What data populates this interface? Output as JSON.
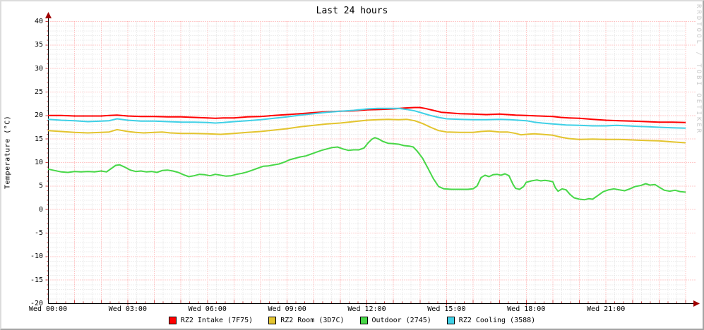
{
  "title": "Last 24 hours",
  "watermark": "RRDTOOL / TOBI OETIKER",
  "y_axis_label": "Temperature (°C)",
  "colors": {
    "intake": "#ff0000",
    "room": "#e3c42e",
    "outdoor": "#47d747",
    "cooling": "#3fd0e6",
    "grid_major": "#ff9898",
    "grid_minor": "#dedede",
    "axis": "#000000",
    "arrow": "#a00000",
    "tick": "#cc4444",
    "watermark": "#cbcbcb"
  },
  "legend": [
    {
      "label": "RZ2 Intake (7F75)",
      "color": "#ff0000"
    },
    {
      "label": "RZ2 Room (3D7C)",
      "color": "#e3c42e"
    },
    {
      "label": "Outdoor (2745)",
      "color": "#47d747"
    },
    {
      "label": "RZ2 Cooling (3588)",
      "color": "#3fd0e6"
    }
  ],
  "chart_data": {
    "type": "line",
    "title": "Last 24 hours",
    "xlabel": "",
    "ylabel": "Temperature (°C)",
    "ylim": [
      -20,
      40
    ],
    "xlim_hours": [
      0,
      24
    ],
    "grid": {
      "x_major_every_hours": 1,
      "x_minor_every_minutes": 20,
      "y_major_every": 5,
      "y_minor_every": 1,
      "legend_position": "bottom"
    },
    "y_ticks": [
      40,
      35,
      30,
      25,
      20,
      15,
      10,
      5,
      0,
      -5,
      -10,
      -15,
      -20
    ],
    "x_ticks": [
      {
        "hour": 0,
        "label": "Wed 00:00"
      },
      {
        "hour": 3,
        "label": "Wed 03:00"
      },
      {
        "hour": 6,
        "label": "Wed 06:00"
      },
      {
        "hour": 9,
        "label": "Wed 09:00"
      },
      {
        "hour": 12,
        "label": "Wed 12:00"
      },
      {
        "hour": 15,
        "label": "Wed 15:00"
      },
      {
        "hour": 18,
        "label": "Wed 18:00"
      },
      {
        "hour": 21,
        "label": "Wed 21:00"
      }
    ],
    "series": [
      {
        "name": "RZ2 Intake (7F75)",
        "color": "#ff0000",
        "points": [
          [
            0,
            20.0
          ],
          [
            0.5,
            20.0
          ],
          [
            1,
            19.9
          ],
          [
            1.5,
            19.9
          ],
          [
            2,
            19.9
          ],
          [
            2.3,
            20.0
          ],
          [
            2.6,
            20.1
          ],
          [
            3,
            19.9
          ],
          [
            3.5,
            19.8
          ],
          [
            4,
            19.8
          ],
          [
            4.5,
            19.7
          ],
          [
            5,
            19.7
          ],
          [
            5.5,
            19.6
          ],
          [
            6,
            19.5
          ],
          [
            6.3,
            19.4
          ],
          [
            6.6,
            19.5
          ],
          [
            7,
            19.5
          ],
          [
            7.5,
            19.7
          ],
          [
            8,
            19.8
          ],
          [
            8.5,
            20.0
          ],
          [
            9,
            20.2
          ],
          [
            9.5,
            20.4
          ],
          [
            10,
            20.6
          ],
          [
            10.5,
            20.8
          ],
          [
            11,
            20.9
          ],
          [
            11.5,
            21.0
          ],
          [
            12,
            21.2
          ],
          [
            12.5,
            21.3
          ],
          [
            13,
            21.4
          ],
          [
            13.4,
            21.6
          ],
          [
            13.8,
            21.7
          ],
          [
            14,
            21.7
          ],
          [
            14.2,
            21.5
          ],
          [
            14.5,
            21.1
          ],
          [
            14.8,
            20.7
          ],
          [
            15,
            20.6
          ],
          [
            15.5,
            20.4
          ],
          [
            16,
            20.3
          ],
          [
            16.5,
            20.2
          ],
          [
            17,
            20.3
          ],
          [
            17.3,
            20.2
          ],
          [
            17.6,
            20.1
          ],
          [
            18,
            20.0
          ],
          [
            18.5,
            19.9
          ],
          [
            19,
            19.8
          ],
          [
            19.3,
            19.6
          ],
          [
            19.6,
            19.5
          ],
          [
            20,
            19.4
          ],
          [
            20.5,
            19.2
          ],
          [
            21,
            19.0
          ],
          [
            21.5,
            18.9
          ],
          [
            22,
            18.8
          ],
          [
            22.5,
            18.7
          ],
          [
            23,
            18.6
          ],
          [
            23.5,
            18.6
          ],
          [
            24,
            18.5
          ]
        ]
      },
      {
        "name": "RZ2 Room (3D7C)",
        "color": "#e3c42e",
        "points": [
          [
            0,
            16.8
          ],
          [
            0.5,
            16.6
          ],
          [
            1,
            16.4
          ],
          [
            1.5,
            16.3
          ],
          [
            2,
            16.4
          ],
          [
            2.3,
            16.5
          ],
          [
            2.6,
            17.0
          ],
          [
            3,
            16.6
          ],
          [
            3.3,
            16.4
          ],
          [
            3.6,
            16.3
          ],
          [
            4,
            16.4
          ],
          [
            4.3,
            16.5
          ],
          [
            4.6,
            16.3
          ],
          [
            5,
            16.2
          ],
          [
            5.5,
            16.2
          ],
          [
            6,
            16.1
          ],
          [
            6.5,
            16.0
          ],
          [
            7,
            16.2
          ],
          [
            7.5,
            16.4
          ],
          [
            8,
            16.6
          ],
          [
            8.5,
            16.9
          ],
          [
            9,
            17.2
          ],
          [
            9.5,
            17.6
          ],
          [
            10,
            17.9
          ],
          [
            10.5,
            18.2
          ],
          [
            11,
            18.4
          ],
          [
            11.5,
            18.7
          ],
          [
            12,
            19.0
          ],
          [
            12.4,
            19.1
          ],
          [
            12.8,
            19.2
          ],
          [
            13.2,
            19.1
          ],
          [
            13.5,
            19.2
          ],
          [
            13.8,
            18.9
          ],
          [
            14.1,
            18.3
          ],
          [
            14.4,
            17.5
          ],
          [
            14.7,
            16.8
          ],
          [
            15,
            16.5
          ],
          [
            15.5,
            16.4
          ],
          [
            16,
            16.4
          ],
          [
            16.3,
            16.6
          ],
          [
            16.6,
            16.7
          ],
          [
            17,
            16.5
          ],
          [
            17.3,
            16.5
          ],
          [
            17.6,
            16.2
          ],
          [
            17.8,
            15.9
          ],
          [
            18,
            16.0
          ],
          [
            18.3,
            16.1
          ],
          [
            18.6,
            16.0
          ],
          [
            19,
            15.8
          ],
          [
            19.3,
            15.4
          ],
          [
            19.6,
            15.1
          ],
          [
            20,
            14.9
          ],
          [
            20.5,
            15.0
          ],
          [
            21,
            14.9
          ],
          [
            21.5,
            14.9
          ],
          [
            22,
            14.8
          ],
          [
            22.5,
            14.7
          ],
          [
            23,
            14.6
          ],
          [
            23.5,
            14.4
          ],
          [
            24,
            14.2
          ]
        ]
      },
      {
        "name": "Outdoor (2745)",
        "color": "#47d747",
        "points": [
          [
            0,
            8.6
          ],
          [
            0.25,
            8.3
          ],
          [
            0.5,
            8.0
          ],
          [
            0.75,
            7.9
          ],
          [
            1,
            8.1
          ],
          [
            1.25,
            8.0
          ],
          [
            1.5,
            8.1
          ],
          [
            1.75,
            8.0
          ],
          [
            2,
            8.2
          ],
          [
            2.2,
            8.0
          ],
          [
            2.4,
            8.8
          ],
          [
            2.55,
            9.4
          ],
          [
            2.7,
            9.5
          ],
          [
            2.9,
            9.0
          ],
          [
            3.1,
            8.4
          ],
          [
            3.3,
            8.1
          ],
          [
            3.5,
            8.2
          ],
          [
            3.7,
            8.0
          ],
          [
            3.9,
            8.1
          ],
          [
            4.1,
            7.9
          ],
          [
            4.3,
            8.3
          ],
          [
            4.5,
            8.4
          ],
          [
            4.7,
            8.2
          ],
          [
            4.9,
            7.9
          ],
          [
            5.1,
            7.4
          ],
          [
            5.3,
            7.0
          ],
          [
            5.5,
            7.2
          ],
          [
            5.7,
            7.5
          ],
          [
            5.9,
            7.4
          ],
          [
            6.1,
            7.2
          ],
          [
            6.3,
            7.5
          ],
          [
            6.5,
            7.3
          ],
          [
            6.7,
            7.1
          ],
          [
            6.9,
            7.2
          ],
          [
            7.1,
            7.5
          ],
          [
            7.3,
            7.7
          ],
          [
            7.5,
            8.0
          ],
          [
            7.7,
            8.4
          ],
          [
            7.9,
            8.8
          ],
          [
            8.1,
            9.2
          ],
          [
            8.3,
            9.3
          ],
          [
            8.5,
            9.5
          ],
          [
            8.7,
            9.7
          ],
          [
            8.9,
            10.1
          ],
          [
            9.1,
            10.6
          ],
          [
            9.3,
            10.9
          ],
          [
            9.5,
            11.2
          ],
          [
            9.7,
            11.4
          ],
          [
            9.9,
            11.8
          ],
          [
            10.1,
            12.2
          ],
          [
            10.3,
            12.6
          ],
          [
            10.5,
            12.9
          ],
          [
            10.7,
            13.2
          ],
          [
            10.9,
            13.3
          ],
          [
            11.1,
            12.9
          ],
          [
            11.3,
            12.6
          ],
          [
            11.5,
            12.7
          ],
          [
            11.7,
            12.7
          ],
          [
            11.9,
            13.1
          ],
          [
            12.05,
            14.2
          ],
          [
            12.2,
            15.0
          ],
          [
            12.3,
            15.3
          ],
          [
            12.45,
            15.0
          ],
          [
            12.6,
            14.5
          ],
          [
            12.8,
            14.1
          ],
          [
            13,
            14.0
          ],
          [
            13.2,
            13.9
          ],
          [
            13.4,
            13.6
          ],
          [
            13.6,
            13.5
          ],
          [
            13.75,
            13.3
          ],
          [
            13.9,
            12.4
          ],
          [
            14.1,
            10.9
          ],
          [
            14.3,
            8.8
          ],
          [
            14.5,
            6.6
          ],
          [
            14.7,
            4.9
          ],
          [
            14.9,
            4.4
          ],
          [
            15.2,
            4.3
          ],
          [
            15.5,
            4.3
          ],
          [
            15.8,
            4.3
          ],
          [
            16,
            4.4
          ],
          [
            16.15,
            5.0
          ],
          [
            16.3,
            6.8
          ],
          [
            16.45,
            7.3
          ],
          [
            16.6,
            7.0
          ],
          [
            16.75,
            7.4
          ],
          [
            16.9,
            7.5
          ],
          [
            17.05,
            7.3
          ],
          [
            17.2,
            7.6
          ],
          [
            17.35,
            7.2
          ],
          [
            17.5,
            5.4
          ],
          [
            17.6,
            4.5
          ],
          [
            17.75,
            4.3
          ],
          [
            17.9,
            4.9
          ],
          [
            18,
            5.8
          ],
          [
            18.2,
            6.1
          ],
          [
            18.4,
            6.3
          ],
          [
            18.55,
            6.1
          ],
          [
            18.7,
            6.2
          ],
          [
            18.85,
            6.1
          ],
          [
            19,
            5.9
          ],
          [
            19.1,
            4.6
          ],
          [
            19.2,
            3.9
          ],
          [
            19.35,
            4.4
          ],
          [
            19.5,
            4.2
          ],
          [
            19.65,
            3.2
          ],
          [
            19.8,
            2.5
          ],
          [
            20,
            2.2
          ],
          [
            20.2,
            2.1
          ],
          [
            20.35,
            2.3
          ],
          [
            20.5,
            2.2
          ],
          [
            20.7,
            3.0
          ],
          [
            20.9,
            3.8
          ],
          [
            21.1,
            4.2
          ],
          [
            21.3,
            4.4
          ],
          [
            21.5,
            4.2
          ],
          [
            21.7,
            4.0
          ],
          [
            21.9,
            4.4
          ],
          [
            22.1,
            4.9
          ],
          [
            22.3,
            5.1
          ],
          [
            22.5,
            5.5
          ],
          [
            22.65,
            5.2
          ],
          [
            22.85,
            5.3
          ],
          [
            23.05,
            4.6
          ],
          [
            23.2,
            4.1
          ],
          [
            23.4,
            3.9
          ],
          [
            23.6,
            4.1
          ],
          [
            23.8,
            3.8
          ],
          [
            24,
            3.7
          ]
        ]
      },
      {
        "name": "RZ2 Cooling (3588)",
        "color": "#3fd0e6",
        "points": [
          [
            0,
            19.2
          ],
          [
            0.5,
            19.0
          ],
          [
            1,
            18.9
          ],
          [
            1.5,
            18.7
          ],
          [
            2,
            18.8
          ],
          [
            2.3,
            18.9
          ],
          [
            2.6,
            19.3
          ],
          [
            3,
            19.0
          ],
          [
            3.5,
            18.8
          ],
          [
            4,
            18.8
          ],
          [
            4.5,
            18.7
          ],
          [
            5,
            18.6
          ],
          [
            5.5,
            18.6
          ],
          [
            6,
            18.5
          ],
          [
            6.3,
            18.4
          ],
          [
            6.6,
            18.5
          ],
          [
            7,
            18.7
          ],
          [
            7.5,
            18.9
          ],
          [
            8,
            19.1
          ],
          [
            8.5,
            19.4
          ],
          [
            9,
            19.7
          ],
          [
            9.5,
            20.1
          ],
          [
            10,
            20.4
          ],
          [
            10.5,
            20.7
          ],
          [
            11,
            20.9
          ],
          [
            11.5,
            21.1
          ],
          [
            12,
            21.4
          ],
          [
            12.4,
            21.5
          ],
          [
            12.8,
            21.5
          ],
          [
            13.2,
            21.5
          ],
          [
            13.5,
            21.3
          ],
          [
            13.8,
            21.0
          ],
          [
            14.1,
            20.5
          ],
          [
            14.4,
            20.0
          ],
          [
            14.7,
            19.6
          ],
          [
            15,
            19.3
          ],
          [
            15.5,
            19.2
          ],
          [
            16,
            19.1
          ],
          [
            16.5,
            19.1
          ],
          [
            17,
            19.2
          ],
          [
            17.4,
            19.1
          ],
          [
            17.7,
            19.0
          ],
          [
            18,
            18.9
          ],
          [
            18.3,
            18.6
          ],
          [
            18.6,
            18.4
          ],
          [
            19,
            18.2
          ],
          [
            19.5,
            18.0
          ],
          [
            20,
            17.9
          ],
          [
            20.5,
            17.8
          ],
          [
            21,
            17.8
          ],
          [
            21.4,
            17.9
          ],
          [
            21.8,
            17.8
          ],
          [
            22.2,
            17.7
          ],
          [
            22.6,
            17.6
          ],
          [
            23,
            17.5
          ],
          [
            23.5,
            17.4
          ],
          [
            24,
            17.3
          ]
        ]
      }
    ]
  }
}
